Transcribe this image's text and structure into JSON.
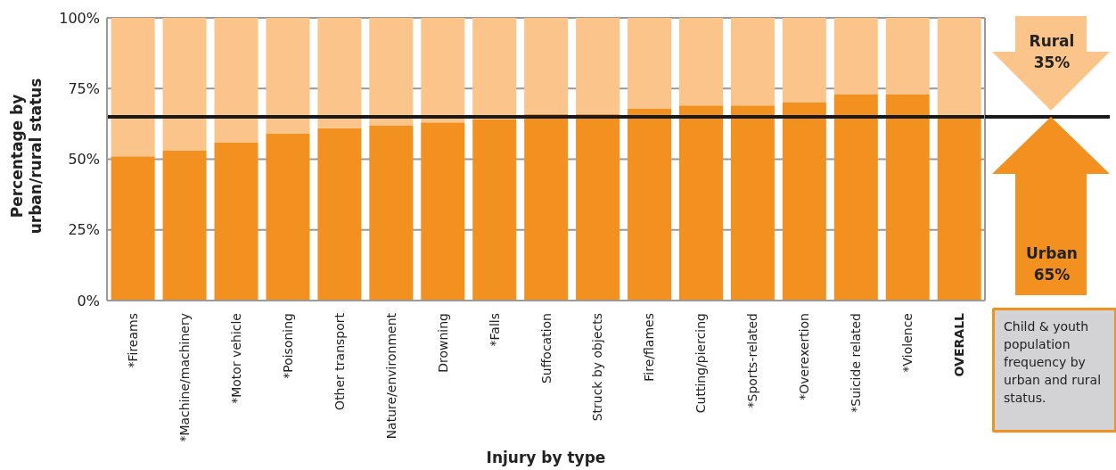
{
  "chart_data": {
    "type": "bar",
    "stacked": true,
    "xlabel": "Injury by type",
    "ylabel": "Percentage by urban/rural status",
    "categories": [
      "*Fireams",
      "*Machine/machinery",
      "*Motor vehicle",
      "*Poisoning",
      "Other transport",
      "Nature/environment",
      "Drowning",
      "*Falls",
      "Suffocation",
      "Struck by objects",
      "Fire/flames",
      "Cutting/piercing",
      "*Sports-related",
      "*Overexertion",
      "*Suicide related",
      "*Violence",
      "OVERALL"
    ],
    "series": [
      {
        "color": "#f29120",
        "values": [
          51,
          53,
          56,
          59,
          61,
          62,
          63,
          64,
          66,
          66,
          68,
          69,
          69,
          70,
          73,
          73,
          65
        ]
      },
      {
        "color": "#fac48a",
        "values": [
          49,
          47,
          44,
          41,
          39,
          38,
          37,
          36,
          34,
          34,
          32,
          31,
          31,
          30,
          27,
          27,
          35
        ]
      }
    ],
    "ylim": [
      0,
      100
    ],
    "yticks": [
      {
        "value": 0,
        "label": "0%"
      },
      {
        "value": 25,
        "label": "25%"
      },
      {
        "value": 50,
        "label": "50%"
      },
      {
        "value": 75,
        "label": "75%"
      },
      {
        "value": 100,
        "label": "100%"
      }
    ],
    "grid": "y",
    "legend": false,
    "ref_lines": [
      {
        "axis": "y",
        "value": 65,
        "color": "#1a1a1a"
      }
    ],
    "annotations": [
      "Rural 35%",
      "Urban 65%",
      "Child & youth population frequency by urban and rural status."
    ]
  }
}
